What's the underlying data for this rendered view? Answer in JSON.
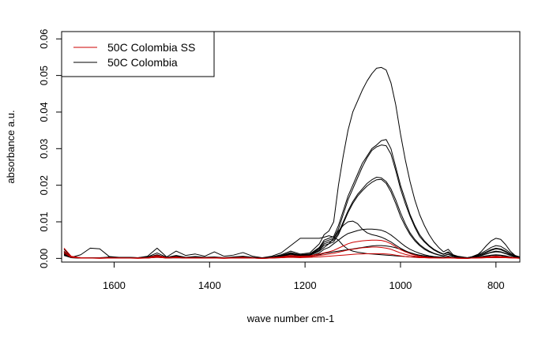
{
  "chart_data": {
    "type": "line",
    "title": "",
    "xlabel": "wave number cm-1",
    "ylabel": "absorbance a.u.",
    "xlim": [
      1710,
      750
    ],
    "x_reversed": true,
    "ylim": [
      -0.001,
      0.062
    ],
    "x_ticks": [
      1600,
      1400,
      1200,
      1000,
      800
    ],
    "x_tick_labels": [
      "1600",
      "1400",
      "1200",
      "1000",
      "800"
    ],
    "y_ticks": [
      0.0,
      0.01,
      0.02,
      0.03,
      0.04,
      0.05,
      0.06
    ],
    "y_tick_labels": [
      "0.00",
      "0.01",
      "0.02",
      "0.03",
      "0.04",
      "0.05",
      "0.06"
    ],
    "grid": false,
    "legend": {
      "position": "top-left",
      "entries": [
        {
          "label": "50C Colombia SS",
          "color": "#cc0000"
        },
        {
          "label": "50C Colombia",
          "color": "#000000"
        }
      ]
    },
    "x": [
      1705,
      1690,
      1670,
      1650,
      1630,
      1610,
      1590,
      1570,
      1550,
      1530,
      1510,
      1490,
      1470,
      1450,
      1430,
      1410,
      1390,
      1370,
      1350,
      1330,
      1310,
      1290,
      1270,
      1250,
      1230,
      1210,
      1190,
      1170,
      1160,
      1150,
      1140,
      1130,
      1120,
      1110,
      1100,
      1090,
      1080,
      1070,
      1060,
      1050,
      1040,
      1030,
      1020,
      1010,
      1000,
      990,
      980,
      970,
      960,
      950,
      940,
      930,
      920,
      910,
      900,
      890,
      880,
      870,
      860,
      850,
      840,
      830,
      820,
      810,
      800,
      790,
      780,
      770,
      760,
      750
    ],
    "series": [
      {
        "color": "#000000",
        "values": [
          0.0025,
          0.0005,
          0.0002,
          0.0002,
          0.0001,
          0.0004,
          0.0002,
          0.0003,
          0.0002,
          0.0004,
          0.0015,
          0.0003,
          0.0008,
          0.0003,
          0.0005,
          0.0003,
          0.0004,
          0.0002,
          0.0004,
          0.0006,
          0.0003,
          0.0001,
          0.0004,
          0.001,
          0.002,
          0.0012,
          0.0015,
          0.004,
          0.0065,
          0.0075,
          0.01,
          0.02,
          0.028,
          0.035,
          0.04,
          0.043,
          0.046,
          0.0485,
          0.0505,
          0.052,
          0.0522,
          0.0515,
          0.048,
          0.042,
          0.034,
          0.027,
          0.021,
          0.016,
          0.012,
          0.009,
          0.0065,
          0.0045,
          0.003,
          0.0018,
          0.0025,
          0.001,
          0.0006,
          0.0004,
          0.0002,
          0.0005,
          0.001,
          0.0015,
          0.0022,
          0.003,
          0.0035,
          0.0033,
          0.0025,
          0.0015,
          0.0008,
          0.0004
        ]
      },
      {
        "color": "#000000",
        "values": [
          0.002,
          0.0004,
          0.0002,
          0.0001,
          0.0002,
          0.0003,
          0.0002,
          0.0002,
          0.0002,
          0.0003,
          0.001,
          0.0002,
          0.0006,
          0.0002,
          0.0004,
          0.0002,
          0.0003,
          0.0002,
          0.0003,
          0.0004,
          0.0002,
          0.0001,
          0.0003,
          0.0008,
          0.0016,
          0.001,
          0.0012,
          0.003,
          0.005,
          0.0055,
          0.006,
          0.009,
          0.013,
          0.017,
          0.02,
          0.023,
          0.026,
          0.028,
          0.03,
          0.031,
          0.0322,
          0.0325,
          0.03,
          0.025,
          0.02,
          0.016,
          0.012,
          0.009,
          0.0065,
          0.0048,
          0.0035,
          0.0025,
          0.0018,
          0.0012,
          0.0018,
          0.0008,
          0.0005,
          0.0003,
          0.0002,
          0.0004,
          0.0008,
          0.0012,
          0.0018,
          0.0024,
          0.0028,
          0.0026,
          0.002,
          0.0012,
          0.0006,
          0.0003
        ]
      },
      {
        "color": "#000000",
        "values": [
          0.0018,
          0.0003,
          0.0002,
          0.0001,
          0.0001,
          0.0003,
          0.0002,
          0.0002,
          0.0001,
          0.0003,
          0.0009,
          0.0002,
          0.0005,
          0.0002,
          0.0003,
          0.0002,
          0.0003,
          0.0001,
          0.0003,
          0.0004,
          0.0002,
          0.0001,
          0.0003,
          0.0007,
          0.0014,
          0.0009,
          0.0011,
          0.0028,
          0.0045,
          0.005,
          0.0055,
          0.008,
          0.012,
          0.016,
          0.019,
          0.022,
          0.025,
          0.0275,
          0.0295,
          0.0305,
          0.031,
          0.0308,
          0.0285,
          0.024,
          0.019,
          0.015,
          0.0115,
          0.0085,
          0.006,
          0.0045,
          0.0033,
          0.0023,
          0.0016,
          0.0011,
          0.0016,
          0.0007,
          0.0004,
          0.0003,
          0.0002,
          0.0004,
          0.0007,
          0.0011,
          0.0016,
          0.0022,
          0.0026,
          0.0024,
          0.0018,
          0.0011,
          0.0006,
          0.0003
        ]
      },
      {
        "color": "#000000",
        "values": [
          0.0015,
          0.0003,
          0.0001,
          0.0001,
          0.0001,
          0.0002,
          0.0001,
          0.0002,
          0.0001,
          0.0002,
          0.0008,
          0.0002,
          0.0005,
          0.0002,
          0.0003,
          0.0002,
          0.0002,
          0.0001,
          0.0002,
          0.0003,
          0.0002,
          0.0001,
          0.0002,
          0.0006,
          0.0012,
          0.0008,
          0.001,
          0.0025,
          0.004,
          0.0045,
          0.005,
          0.007,
          0.01,
          0.013,
          0.0155,
          0.0175,
          0.019,
          0.0205,
          0.0215,
          0.0222,
          0.022,
          0.021,
          0.019,
          0.016,
          0.0125,
          0.0095,
          0.007,
          0.0052,
          0.0038,
          0.0028,
          0.002,
          0.0014,
          0.001,
          0.0007,
          0.0012,
          0.0005,
          0.0003,
          0.0002,
          0.0001,
          0.0003,
          0.0006,
          0.0009,
          0.0013,
          0.0017,
          0.002,
          0.0018,
          0.0014,
          0.0009,
          0.0005,
          0.0002
        ]
      },
      {
        "color": "#000000",
        "values": [
          0.0014,
          0.0003,
          0.0001,
          0.0001,
          0.0001,
          0.0002,
          0.0001,
          0.0002,
          0.0001,
          0.0002,
          0.0007,
          0.0002,
          0.0004,
          0.0002,
          0.0003,
          0.0002,
          0.0002,
          0.0001,
          0.0002,
          0.0003,
          0.0002,
          0.0001,
          0.0002,
          0.0005,
          0.0011,
          0.0007,
          0.0009,
          0.0022,
          0.0036,
          0.004,
          0.0045,
          0.0065,
          0.0095,
          0.0125,
          0.015,
          0.017,
          0.0185,
          0.0198,
          0.0208,
          0.0215,
          0.0216,
          0.0205,
          0.0182,
          0.015,
          0.0115,
          0.0088,
          0.0065,
          0.0048,
          0.0035,
          0.0025,
          0.0018,
          0.0013,
          0.0009,
          0.0006,
          0.0011,
          0.0005,
          0.0003,
          0.0002,
          0.0001,
          0.0003,
          0.0005,
          0.0008,
          0.0012,
          0.0016,
          0.0018,
          0.0017,
          0.0013,
          0.0008,
          0.0004,
          0.0002
        ]
      },
      {
        "color": "#000000",
        "values": [
          0.0012,
          0.0002,
          0.0001,
          0.0001,
          0.0001,
          0.0002,
          0.0001,
          0.0001,
          0.0001,
          0.0002,
          0.0005,
          0.0001,
          0.0003,
          0.0001,
          0.0002,
          0.0001,
          0.0002,
          0.0001,
          0.0002,
          0.0002,
          0.0001,
          0.0001,
          0.0002,
          0.0004,
          0.0008,
          0.0006,
          0.0008,
          0.002,
          0.003,
          0.004,
          0.0055,
          0.0075,
          0.009,
          0.01,
          0.0102,
          0.0095,
          0.008,
          0.007,
          0.0065,
          0.0062,
          0.0058,
          0.0052,
          0.0045,
          0.0036,
          0.0028,
          0.0021,
          0.0015,
          0.0011,
          0.0008,
          0.0006,
          0.0004,
          0.0003,
          0.0002,
          0.0002,
          0.0005,
          0.0002,
          0.0001,
          0.0001,
          0.0001,
          0.0002,
          0.0003,
          0.0004,
          0.0006,
          0.0008,
          0.0009,
          0.0008,
          0.0006,
          0.0004,
          0.0002,
          0.0001
        ]
      },
      {
        "color": "#000000",
        "values": [
          0.001,
          0.0002,
          0.0001,
          0.0001,
          0.0001,
          0.0001,
          0.0001,
          0.0001,
          0.0001,
          0.0001,
          0.0004,
          0.0001,
          0.0002,
          0.0001,
          0.0002,
          0.0001,
          0.0001,
          0.0001,
          0.0001,
          0.0002,
          0.0001,
          0.0001,
          0.0001,
          0.0003,
          0.0006,
          0.0004,
          0.0006,
          0.0015,
          0.0025,
          0.003,
          0.004,
          0.005,
          0.006,
          0.0068,
          0.0072,
          0.0076,
          0.0079,
          0.008,
          0.008,
          0.0079,
          0.0077,
          0.0072,
          0.0064,
          0.0054,
          0.0043,
          0.0033,
          0.0025,
          0.0019,
          0.0014,
          0.001,
          0.0007,
          0.0005,
          0.0004,
          0.0003,
          0.0006,
          0.0002,
          0.0001,
          0.0001,
          0.0001,
          0.0002,
          0.0003,
          0.0005,
          0.0007,
          0.0009,
          0.001,
          0.0009,
          0.0007,
          0.0004,
          0.0002,
          0.0001
        ]
      },
      {
        "color": "#000000",
        "values": [
          0.0015,
          0.0003,
          0.001,
          0.0028,
          0.0026,
          0.0005,
          0.0003,
          0.0003,
          0.0002,
          0.0006,
          0.0028,
          0.0004,
          0.002,
          0.0008,
          0.0012,
          0.0006,
          0.0018,
          0.0006,
          0.0009,
          0.0016,
          0.0006,
          0.0002,
          0.0006,
          0.0015,
          0.0035,
          0.0055,
          0.0055,
          0.0055,
          0.0058,
          0.0062,
          0.0058,
          0.005,
          0.0035,
          0.0025,
          0.002,
          0.0017,
          0.0015,
          0.0013,
          0.0012,
          0.0011,
          0.001,
          0.0009,
          0.0008,
          0.0007,
          0.0006,
          0.0005,
          0.0004,
          0.0004,
          0.0003,
          0.0003,
          0.0003,
          0.0003,
          0.0003,
          0.0002,
          0.0004,
          0.0002,
          0.0001,
          0.0001,
          0.0001,
          0.0003,
          0.0008,
          0.002,
          0.0035,
          0.0048,
          0.0055,
          0.0052,
          0.0038,
          0.002,
          0.0008,
          0.0003
        ]
      },
      {
        "color": "#000000",
        "values": [
          0.0008,
          0.0002,
          0.0001,
          0.0001,
          0.0001,
          0.0001,
          0.0001,
          0.0001,
          0.0001,
          0.0001,
          0.0003,
          0.0001,
          0.0002,
          0.0001,
          0.0001,
          0.0001,
          0.0001,
          0.0001,
          0.0001,
          0.0001,
          0.0001,
          0.0,
          0.0001,
          0.0002,
          0.0004,
          0.0003,
          0.0004,
          0.001,
          0.0014,
          0.0016,
          0.0018,
          0.002,
          0.0022,
          0.0024,
          0.0026,
          0.0028,
          0.003,
          0.0032,
          0.0034,
          0.0035,
          0.0035,
          0.0034,
          0.0032,
          0.0029,
          0.0025,
          0.002,
          0.0016,
          0.0012,
          0.0009,
          0.0007,
          0.0005,
          0.0004,
          0.0003,
          0.0002,
          0.0004,
          0.0002,
          0.0001,
          0.0001,
          0.0001,
          0.0001,
          0.0002,
          0.0003,
          0.0004,
          0.0005,
          0.0006,
          0.0005,
          0.0004,
          0.0003,
          0.0002,
          0.0001
        ]
      },
      {
        "color": "#cc0000",
        "values": [
          0.0028,
          0.0006,
          0.0002,
          0.0001,
          0.0001,
          0.0002,
          0.0001,
          0.0001,
          0.0001,
          0.0002,
          0.0008,
          0.0002,
          0.0004,
          0.0001,
          0.0002,
          0.0001,
          0.0002,
          0.0001,
          0.0002,
          0.0003,
          0.0001,
          0.0,
          0.0002,
          0.0004,
          0.0008,
          0.0006,
          0.0007,
          0.0012,
          0.0015,
          0.0018,
          0.0022,
          0.0028,
          0.0034,
          0.004,
          0.0044,
          0.0046,
          0.0048,
          0.0049,
          0.005,
          0.005,
          0.0049,
          0.0046,
          0.004,
          0.0032,
          0.0024,
          0.0018,
          0.0013,
          0.0009,
          0.0006,
          0.0004,
          0.0003,
          0.0002,
          0.0002,
          0.0001,
          0.0003,
          0.0001,
          0.0001,
          0.0001,
          0.0,
          0.0001,
          0.0002,
          0.0003,
          0.0004,
          0.0005,
          0.0006,
          0.0005,
          0.0004,
          0.0003,
          0.0002,
          0.0001
        ]
      },
      {
        "color": "#cc0000",
        "values": [
          0.002,
          0.0004,
          0.0001,
          0.0001,
          0.0001,
          0.0001,
          0.0001,
          0.0001,
          0.0001,
          0.0001,
          0.0005,
          0.0001,
          0.0003,
          0.0001,
          0.0002,
          0.0001,
          0.0001,
          0.0001,
          0.0001,
          0.0002,
          0.0001,
          0.0,
          0.0001,
          0.0003,
          0.0005,
          0.0004,
          0.0005,
          0.0008,
          0.001,
          0.0012,
          0.0014,
          0.0017,
          0.002,
          0.0023,
          0.0025,
          0.0027,
          0.0029,
          0.003,
          0.0031,
          0.0031,
          0.003,
          0.0028,
          0.0025,
          0.002,
          0.0015,
          0.0011,
          0.0008,
          0.0006,
          0.0004,
          0.0003,
          0.0002,
          0.0002,
          0.0001,
          0.0001,
          0.0002,
          0.0001,
          0.0001,
          0.0,
          0.0,
          0.0001,
          0.0001,
          0.0002,
          0.0003,
          0.0003,
          0.0004,
          0.0003,
          0.0003,
          0.0002,
          0.0001,
          0.0001
        ]
      },
      {
        "color": "#cc0000",
        "values": [
          0.0015,
          0.0003,
          0.0001,
          0.0001,
          0.0,
          0.0001,
          0.0001,
          0.0001,
          0.0,
          0.0001,
          0.0003,
          0.0001,
          0.0002,
          0.0001,
          0.0001,
          0.0001,
          0.0001,
          0.0,
          0.0001,
          0.0001,
          0.0001,
          0.0,
          0.0001,
          0.0002,
          0.0003,
          0.0002,
          0.0003,
          0.0004,
          0.0005,
          0.0006,
          0.0007,
          0.0008,
          0.0009,
          0.001,
          0.0011,
          0.0012,
          0.0012,
          0.0013,
          0.0013,
          0.0013,
          0.0013,
          0.0012,
          0.0011,
          0.0009,
          0.0007,
          0.0005,
          0.0004,
          0.0003,
          0.0002,
          0.0002,
          0.0001,
          0.0001,
          0.0001,
          0.0001,
          0.0001,
          0.0001,
          0.0,
          0.0,
          0.0,
          0.0001,
          0.0001,
          0.0001,
          0.0002,
          0.0002,
          0.0002,
          0.0002,
          0.0002,
          0.0001,
          0.0001,
          0.0
        ]
      }
    ]
  }
}
